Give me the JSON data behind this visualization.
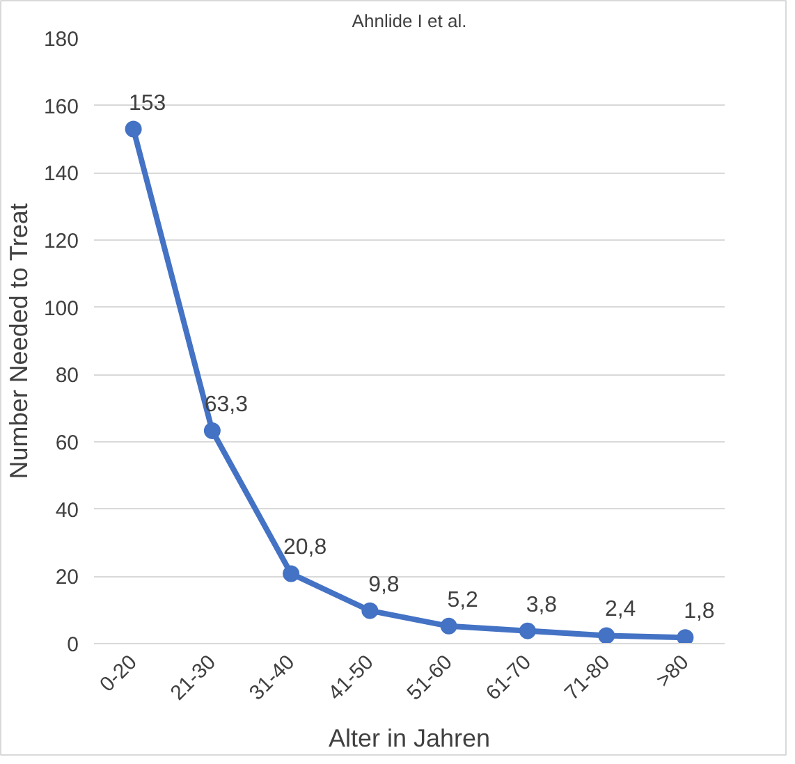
{
  "chart_data": {
    "type": "line",
    "title": "Ahnlide I et al.",
    "xlabel": "Alter in Jahren",
    "ylabel": "Number Needed to Treat",
    "categories": [
      "0-20",
      "21-30",
      "31-40",
      "41-50",
      "51-60",
      "61-70",
      "71-80",
      ">80"
    ],
    "series": [
      {
        "color": "#4472c4",
        "values": [
          153,
          63.3,
          20.8,
          9.8,
          5.2,
          3.8,
          2.4,
          1.8
        ],
        "value_labels": [
          "153",
          "63,3",
          "20,8",
          "9,8",
          "5,2",
          "3,8",
          "2,4",
          "1,8"
        ]
      }
    ],
    "ylim": [
      0,
      180
    ],
    "yticks": [
      0,
      20,
      40,
      60,
      80,
      100,
      120,
      140,
      160,
      180
    ],
    "grid": "y",
    "marker": "circle",
    "line_style": "solid"
  }
}
